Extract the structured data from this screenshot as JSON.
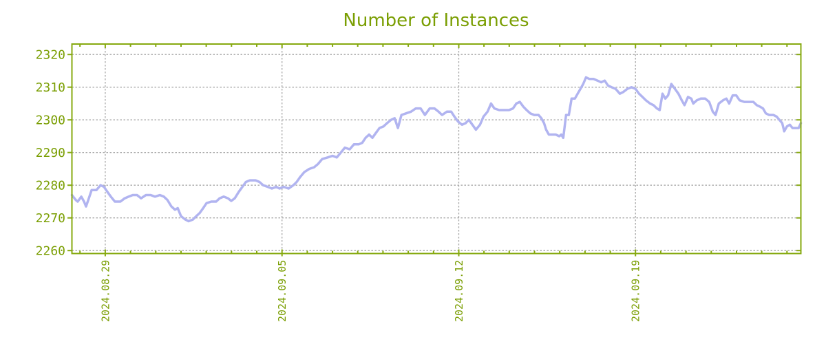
{
  "title": "Number of Instances",
  "colors": {
    "title_text": "#7a9e02",
    "axis_text": "#7a9e02",
    "plot_border": "#86a90f",
    "grid": "#a6a6a6",
    "line": "#b1b4f0",
    "background": "#ffffff"
  },
  "chart_data": {
    "type": "line",
    "title": "Number of Instances",
    "legend_position": "none",
    "x_axis": {
      "kind": "time",
      "tick_labels": [
        "2024.08.29",
        "2024.09.05",
        "2024.09.12",
        "2024.09.19"
      ],
      "tick_days": [
        1.32,
        8.32,
        15.32,
        22.32
      ],
      "minor_tick_first_day": 0.32,
      "minor_tick_step_days": 1,
      "range_days": [
        0,
        28.87
      ],
      "grid": true
    },
    "y_axis": {
      "range": [
        2259.1,
        2323.2
      ],
      "tick_step": 10,
      "ticks": [
        2260,
        2270,
        2280,
        2290,
        2300,
        2310,
        2320
      ],
      "grid": true
    },
    "series": [
      {
        "name": "Number of Instances",
        "color": "#b1b4f0",
        "points": [
          [
            0,
            2277
          ],
          [
            0.15,
            2275.5
          ],
          [
            0.23,
            2275
          ],
          [
            0.37,
            2276.5
          ],
          [
            0.48,
            2275
          ],
          [
            0.56,
            2273.5
          ],
          [
            0.67,
            2276
          ],
          [
            0.78,
            2278.5
          ],
          [
            0.97,
            2278.5
          ],
          [
            1.13,
            2280
          ],
          [
            1.27,
            2279.5
          ],
          [
            1.4,
            2278
          ],
          [
            1.54,
            2276.5
          ],
          [
            1.7,
            2275
          ],
          [
            1.92,
            2275
          ],
          [
            2.09,
            2276
          ],
          [
            2.25,
            2276.5
          ],
          [
            2.41,
            2277
          ],
          [
            2.58,
            2277
          ],
          [
            2.74,
            2276
          ],
          [
            2.93,
            2277
          ],
          [
            3.12,
            2277
          ],
          [
            3.29,
            2276.5
          ],
          [
            3.48,
            2277
          ],
          [
            3.64,
            2276.5
          ],
          [
            3.78,
            2275.5
          ],
          [
            3.94,
            2273.5
          ],
          [
            4.08,
            2272.5
          ],
          [
            4.19,
            2273
          ],
          [
            4.32,
            2270.5
          ],
          [
            4.49,
            2269.5
          ],
          [
            4.62,
            2269
          ],
          [
            4.79,
            2269.5
          ],
          [
            4.92,
            2270.5
          ],
          [
            5.06,
            2271.5
          ],
          [
            5.2,
            2273
          ],
          [
            5.33,
            2274.5
          ],
          [
            5.52,
            2275
          ],
          [
            5.71,
            2275
          ],
          [
            5.85,
            2276
          ],
          [
            6.01,
            2276.5
          ],
          [
            6.18,
            2276
          ],
          [
            6.31,
            2275.2
          ],
          [
            6.45,
            2276
          ],
          [
            6.61,
            2278
          ],
          [
            6.75,
            2279.5
          ],
          [
            6.89,
            2281
          ],
          [
            7.05,
            2281.5
          ],
          [
            7.27,
            2281.5
          ],
          [
            7.43,
            2281
          ],
          [
            7.57,
            2280
          ],
          [
            7.76,
            2279.5
          ],
          [
            7.92,
            2279
          ],
          [
            8.09,
            2279.5
          ],
          [
            8.22,
            2279
          ],
          [
            8.39,
            2279.5
          ],
          [
            8.58,
            2279
          ],
          [
            8.77,
            2280
          ],
          [
            8.9,
            2281
          ],
          [
            9.04,
            2282.5
          ],
          [
            9.2,
            2284
          ],
          [
            9.4,
            2285
          ],
          [
            9.59,
            2285.5
          ],
          [
            9.75,
            2286.5
          ],
          [
            9.91,
            2288
          ],
          [
            10.13,
            2288.5
          ],
          [
            10.32,
            2289
          ],
          [
            10.49,
            2288.5
          ],
          [
            10.65,
            2290
          ],
          [
            10.81,
            2291.5
          ],
          [
            11,
            2291
          ],
          [
            11.17,
            2292.5
          ],
          [
            11.36,
            2292.5
          ],
          [
            11.5,
            2293
          ],
          [
            11.63,
            2294.5
          ],
          [
            11.77,
            2295.5
          ],
          [
            11.9,
            2294.5
          ],
          [
            12.04,
            2296
          ],
          [
            12.18,
            2297.5
          ],
          [
            12.34,
            2298
          ],
          [
            12.48,
            2299
          ],
          [
            12.64,
            2300
          ],
          [
            12.78,
            2300.5
          ],
          [
            12.91,
            2297.5
          ],
          [
            13.05,
            2301.5
          ],
          [
            13.24,
            2302
          ],
          [
            13.43,
            2302.5
          ],
          [
            13.62,
            2303.5
          ],
          [
            13.81,
            2303.5
          ],
          [
            13.98,
            2301.5
          ],
          [
            14.17,
            2303.5
          ],
          [
            14.36,
            2303.5
          ],
          [
            14.52,
            2302.5
          ],
          [
            14.66,
            2301.5
          ],
          [
            14.85,
            2302.5
          ],
          [
            15.02,
            2302.5
          ],
          [
            15.15,
            2301
          ],
          [
            15.29,
            2299.5
          ],
          [
            15.45,
            2298.5
          ],
          [
            15.59,
            2299
          ],
          [
            15.72,
            2300
          ],
          [
            15.86,
            2298.5
          ],
          [
            16,
            2297
          ],
          [
            16.16,
            2298.5
          ],
          [
            16.3,
            2301
          ],
          [
            16.46,
            2302.5
          ],
          [
            16.6,
            2305
          ],
          [
            16.73,
            2303.5
          ],
          [
            16.92,
            2303
          ],
          [
            17.11,
            2303
          ],
          [
            17.31,
            2303
          ],
          [
            17.47,
            2303.5
          ],
          [
            17.6,
            2305
          ],
          [
            17.74,
            2305.5
          ],
          [
            17.88,
            2304
          ],
          [
            18.01,
            2303
          ],
          [
            18.15,
            2302
          ],
          [
            18.31,
            2301.5
          ],
          [
            18.48,
            2301.5
          ],
          [
            18.59,
            2300.5
          ],
          [
            18.7,
            2299
          ],
          [
            18.78,
            2297
          ],
          [
            18.89,
            2295.5
          ],
          [
            19.02,
            2295.5
          ],
          [
            19.16,
            2295.5
          ],
          [
            19.3,
            2295
          ],
          [
            19.38,
            2295.5
          ],
          [
            19.46,
            2294.5
          ],
          [
            19.57,
            2301.5
          ],
          [
            19.68,
            2301.5
          ],
          [
            19.79,
            2306.5
          ],
          [
            19.92,
            2306.5
          ],
          [
            20.03,
            2308
          ],
          [
            20.14,
            2309.5
          ],
          [
            20.25,
            2311
          ],
          [
            20.36,
            2313
          ],
          [
            20.5,
            2312.5
          ],
          [
            20.66,
            2312.5
          ],
          [
            20.82,
            2312
          ],
          [
            20.96,
            2311.5
          ],
          [
            21.1,
            2312
          ],
          [
            21.23,
            2310.5
          ],
          [
            21.37,
            2310
          ],
          [
            21.53,
            2309.5
          ],
          [
            21.7,
            2308
          ],
          [
            21.83,
            2308.5
          ],
          [
            22,
            2309.5
          ],
          [
            22.16,
            2310
          ],
          [
            22.32,
            2309.5
          ],
          [
            22.46,
            2308
          ],
          [
            22.6,
            2307
          ],
          [
            22.73,
            2306
          ],
          [
            22.9,
            2305
          ],
          [
            23.03,
            2304.5
          ],
          [
            23.17,
            2303.5
          ],
          [
            23.28,
            2303
          ],
          [
            23.39,
            2308
          ],
          [
            23.5,
            2306.5
          ],
          [
            23.61,
            2307.5
          ],
          [
            23.74,
            2311
          ],
          [
            23.88,
            2309.5
          ],
          [
            24.02,
            2308
          ],
          [
            24.15,
            2306
          ],
          [
            24.26,
            2304.5
          ],
          [
            24.4,
            2307
          ],
          [
            24.53,
            2306.5
          ],
          [
            24.61,
            2305
          ],
          [
            24.75,
            2306
          ],
          [
            24.91,
            2306.5
          ],
          [
            25.08,
            2306.5
          ],
          [
            25.24,
            2305.5
          ],
          [
            25.38,
            2302.5
          ],
          [
            25.49,
            2301.5
          ],
          [
            25.62,
            2305
          ],
          [
            25.79,
            2306
          ],
          [
            25.92,
            2306.5
          ],
          [
            26.03,
            2305
          ],
          [
            26.17,
            2307.5
          ],
          [
            26.31,
            2307.5
          ],
          [
            26.44,
            2306
          ],
          [
            26.63,
            2305.5
          ],
          [
            26.82,
            2305.5
          ],
          [
            26.99,
            2305.5
          ],
          [
            27.12,
            2304.5
          ],
          [
            27.26,
            2304
          ],
          [
            27.37,
            2303.5
          ],
          [
            27.48,
            2302
          ],
          [
            27.61,
            2301.5
          ],
          [
            27.78,
            2301.5
          ],
          [
            27.91,
            2301
          ],
          [
            28.02,
            2300
          ],
          [
            28.13,
            2299
          ],
          [
            28.21,
            2296.5
          ],
          [
            28.32,
            2298
          ],
          [
            28.43,
            2298.5
          ],
          [
            28.54,
            2297.5
          ],
          [
            28.67,
            2297.5
          ],
          [
            28.78,
            2297.5
          ],
          [
            28.87,
            2299
          ]
        ]
      }
    ]
  }
}
